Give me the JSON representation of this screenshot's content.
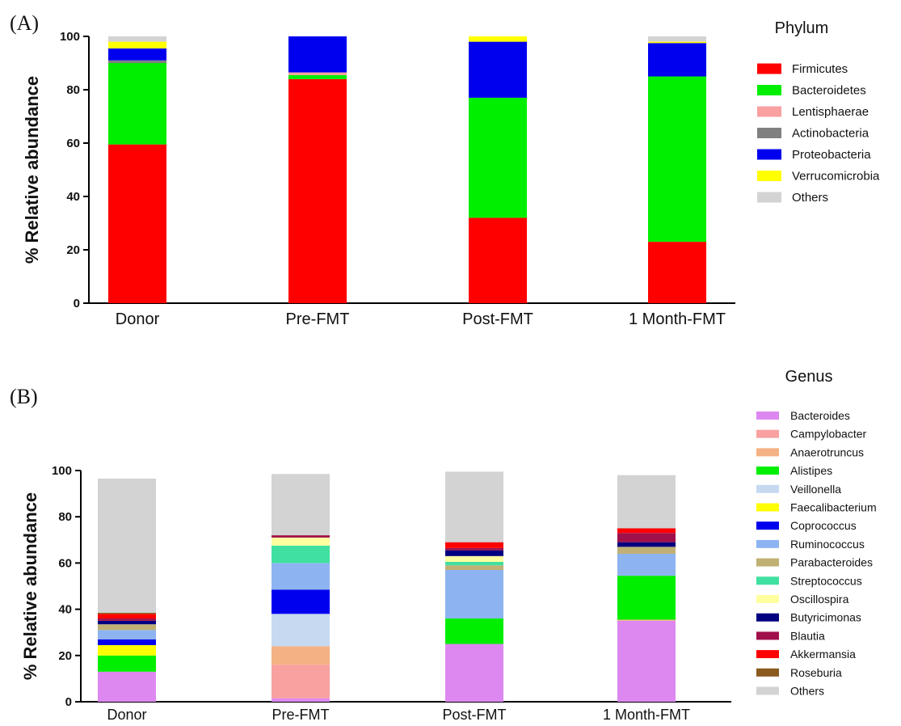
{
  "chart_data": [
    {
      "panel_label": "(A)",
      "type": "bar",
      "stacked": true,
      "ylabel": "% Relative abundance",
      "ylim": [
        0,
        100
      ],
      "yticks": [
        "0",
        "20",
        "40",
        "60",
        "80",
        "100"
      ],
      "categories": [
        "Donor",
        "Pre-FMT",
        "Post-FMT",
        "1 Month-FMT"
      ],
      "legend_title": "Phylum",
      "legend_position": "right",
      "series": [
        {
          "name": "Firmicutes",
          "color": "#ff0000",
          "values": [
            59.5,
            84,
            32,
            23
          ]
        },
        {
          "name": "Bacteroidetes",
          "color": "#00ee00",
          "values": [
            30.5,
            1.5,
            45,
            62
          ]
        },
        {
          "name": "Lentisphaerae",
          "color": "#f9a0a0",
          "values": [
            0,
            1,
            0,
            0
          ]
        },
        {
          "name": "Actinobacteria",
          "color": "#808080",
          "values": [
            1,
            0,
            0,
            0
          ]
        },
        {
          "name": "Proteobacteria",
          "color": "#0000ee",
          "values": [
            4.5,
            13.5,
            21,
            12.5
          ]
        },
        {
          "name": "Verrucomicrobia",
          "color": "#ffff00",
          "values": [
            2.5,
            0,
            2,
            0.5
          ]
        },
        {
          "name": "Others",
          "color": "#d3d3d3",
          "values": [
            2,
            0,
            0,
            2
          ]
        }
      ]
    },
    {
      "panel_label": "(B)",
      "type": "bar",
      "stacked": true,
      "ylabel": "% Relative abundance",
      "ylim": [
        0,
        100
      ],
      "yticks": [
        "0",
        "20",
        "40",
        "60",
        "80",
        "100"
      ],
      "categories": [
        "Donor",
        "Pre-FMT",
        "Post-FMT",
        "1 Month-FMT"
      ],
      "legend_title": "Genus",
      "legend_position": "right",
      "series": [
        {
          "name": "Bacteroides",
          "color": "#dd88f0",
          "values": [
            13,
            1.5,
            25,
            35
          ]
        },
        {
          "name": "Campylobacter",
          "color": "#f9a0a0",
          "values": [
            0,
            14.5,
            0,
            0
          ]
        },
        {
          "name": "Anaerotruncus",
          "color": "#f4b183",
          "values": [
            0,
            8,
            0,
            0.5
          ]
        },
        {
          "name": "Alistipes",
          "color": "#00ee00",
          "values": [
            7,
            0,
            11,
            19
          ]
        },
        {
          "name": "Veillonella",
          "color": "#c6d9f1",
          "values": [
            0,
            14,
            0,
            0
          ]
        },
        {
          "name": "Faecalibacterium",
          "color": "#ffff00",
          "values": [
            4.5,
            0,
            0,
            0
          ]
        },
        {
          "name": "Coprococcus",
          "color": "#0000ee",
          "values": [
            2.5,
            10.5,
            0,
            0
          ]
        },
        {
          "name": "Ruminococcus",
          "color": "#8db4f0",
          "values": [
            4,
            11.5,
            21,
            9.5
          ]
        },
        {
          "name": "Parabacteroides",
          "color": "#c0b074",
          "values": [
            2.5,
            0,
            2,
            3
          ]
        },
        {
          "name": "Streptococcus",
          "color": "#40e0a0",
          "values": [
            0,
            7.5,
            1.5,
            0
          ]
        },
        {
          "name": "Oscillospira",
          "color": "#ffffa0",
          "values": [
            0,
            3.5,
            2.5,
            0
          ]
        },
        {
          "name": "Butyricimonas",
          "color": "#000080",
          "values": [
            1.5,
            0,
            2.5,
            2
          ]
        },
        {
          "name": "Blautia",
          "color": "#a0104a",
          "values": [
            1,
            1,
            1,
            4
          ]
        },
        {
          "name": "Akkermansia",
          "color": "#ff0000",
          "values": [
            2,
            0,
            2.5,
            2
          ]
        },
        {
          "name": "Roseburia",
          "color": "#8b5a1e",
          "values": [
            0.5,
            0,
            0,
            0
          ]
        },
        {
          "name": "Others",
          "color": "#d3d3d3",
          "values": [
            58,
            26.5,
            30.5,
            23
          ]
        }
      ]
    }
  ]
}
